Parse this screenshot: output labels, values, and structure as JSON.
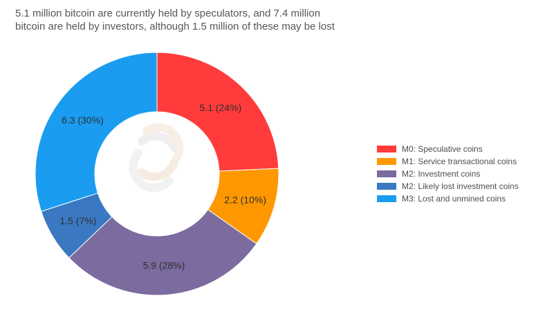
{
  "title_lines": [
    "5.1 million bitcoin are currently held by speculators, and 7.4 million",
    "bitcoin are held by investors, although 1.5 million of these may be lost"
  ],
  "chart_data": {
    "type": "pie",
    "variant": "donut",
    "legend_position": "right",
    "slices": [
      {
        "name": "M0: Speculative coins",
        "value": 5.1,
        "percent": 24,
        "label": "5.1 (24%)",
        "color": "#ff3b3b"
      },
      {
        "name": "M1: Service transactional coins",
        "value": 2.2,
        "percent": 10,
        "label": "2.2 (10%)",
        "color": "#ff9800"
      },
      {
        "name": "M2: Investment coins",
        "value": 5.9,
        "percent": 28,
        "label": "5.9 (28%)",
        "color": "#7b6b9e"
      },
      {
        "name": "M2: Likely lost investment coins",
        "value": 1.5,
        "percent": 7,
        "label": "1.5 (7%)",
        "color": "#3a78c2"
      },
      {
        "name": "M3: Lost and unmined coins",
        "value": 6.3,
        "percent": 30,
        "label": "6.3 (30%)",
        "color": "#1a9cf0"
      }
    ]
  }
}
